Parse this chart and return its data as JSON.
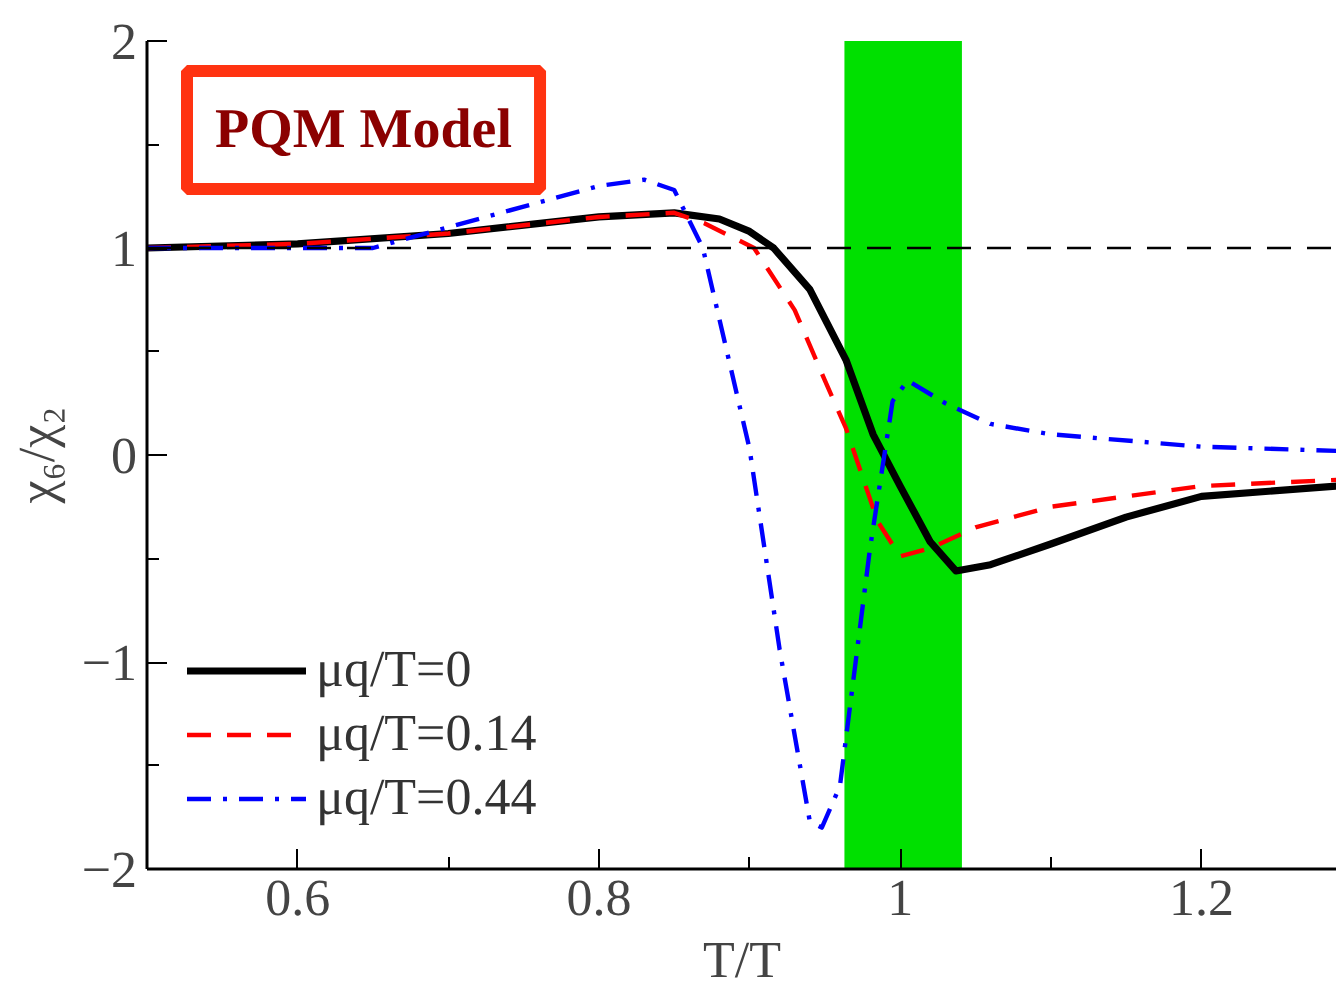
{
  "chart_data": {
    "type": "line",
    "xlabel": "T/T",
    "ylabel": "χ₆/χ₂",
    "xlim": [
      0.5,
      1.29
    ],
    "ylim": [
      -2,
      2
    ],
    "xticks": [
      0.6,
      0.8,
      1,
      1.2
    ],
    "yticks": [
      -2,
      -1,
      0,
      1,
      2
    ],
    "grid": false,
    "legend": "bottom left",
    "annotations": [
      "PQM Model"
    ],
    "ref_lines": [
      {
        "axis": "y",
        "value": 1,
        "label": null,
        "color": "#000000",
        "line_style": "dashed"
      }
    ],
    "bands": [
      {
        "axis": "x",
        "from": 0.963,
        "to": 1.041,
        "label": null,
        "color": "#00e000"
      }
    ],
    "series": [
      {
        "name": "μq/T=0",
        "color": "#000000",
        "line_style": "solid",
        "x": [
          0.5,
          0.6,
          0.7,
          0.8,
          0.85,
          0.88,
          0.9,
          0.916,
          0.94,
          0.964,
          0.982,
          1.0,
          1.02,
          1.037,
          1.06,
          1.1,
          1.15,
          1.2,
          1.29
        ],
        "values": [
          1.0,
          1.02,
          1.07,
          1.15,
          1.17,
          1.14,
          1.08,
          1.0,
          0.8,
          0.46,
          0.1,
          -0.15,
          -0.42,
          -0.56,
          -0.53,
          -0.43,
          -0.3,
          -0.2,
          -0.15
        ]
      },
      {
        "name": "μq/T=0.14",
        "color": "#ff0000",
        "line_style": "dashed",
        "x": [
          0.5,
          0.6,
          0.7,
          0.8,
          0.85,
          0.87,
          0.903,
          0.93,
          0.95,
          0.964,
          0.985,
          1.0,
          1.02,
          1.05,
          1.1,
          1.2,
          1.29
        ],
        "values": [
          1.0,
          1.02,
          1.07,
          1.15,
          1.17,
          1.12,
          1.0,
          0.7,
          0.36,
          0.13,
          -0.32,
          -0.49,
          -0.45,
          -0.35,
          -0.25,
          -0.15,
          -0.12
        ]
      },
      {
        "name": "μq/T=0.44",
        "color": "#0000ff",
        "line_style": "dashdot",
        "x": [
          0.5,
          0.65,
          0.7,
          0.75,
          0.8,
          0.83,
          0.85,
          0.869,
          0.9,
          0.92,
          0.94,
          0.948,
          0.96,
          0.98,
          0.995,
          1.005,
          1.03,
          1.06,
          1.1,
          1.2,
          1.29
        ],
        "values": [
          1.0,
          1.0,
          1.1,
          1.2,
          1.3,
          1.33,
          1.28,
          1.0,
          0.03,
          -0.94,
          -1.77,
          -1.8,
          -1.6,
          -0.45,
          0.26,
          0.36,
          0.25,
          0.15,
          0.1,
          0.04,
          0.02
        ]
      }
    ]
  }
}
